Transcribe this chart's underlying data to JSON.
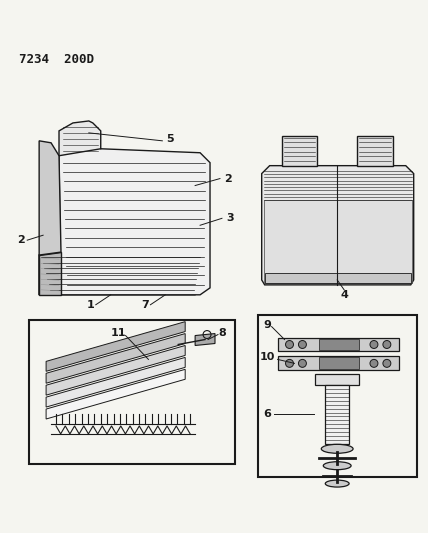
{
  "title": "7234  200D",
  "bg_color": "#f5f5f0",
  "line_color": "#1a1a1a",
  "fig_width": 4.28,
  "fig_height": 5.33,
  "dpi": 100
}
